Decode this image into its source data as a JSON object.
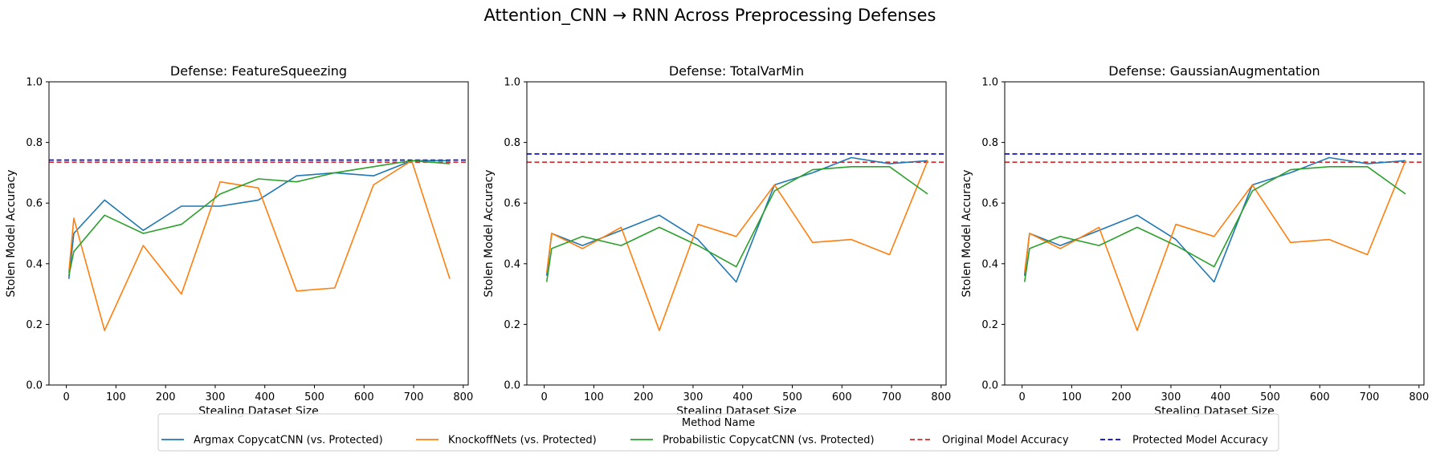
{
  "figure": {
    "title": "Attention_CNN → RNN Across Preprocessing Defenses"
  },
  "legend": {
    "title": "Method Name",
    "items": [
      {
        "label": "Argmax CopycatCNN (vs. Protected)",
        "color": "#1f77b4",
        "style": "solid"
      },
      {
        "label": "KnockoffNets (vs. Protected)",
        "color": "#ff7f0e",
        "style": "solid"
      },
      {
        "label": "Probabilistic CopycatCNN (vs. Protected)",
        "color": "#2ca02c",
        "style": "solid"
      },
      {
        "label": "Original Model Accuracy",
        "color": "#d62728",
        "style": "dashed"
      },
      {
        "label": "Protected Model Accuracy",
        "color": "#0000cc",
        "style": "dashed"
      }
    ]
  },
  "chart_data": [
    {
      "type": "line",
      "title": "Defense: FeatureSqueezing",
      "xlabel": "Stealing Dataset Size",
      "ylabel": "Stolen Model Accuracy",
      "xlim": [
        -35,
        810
      ],
      "ylim": [
        0,
        1
      ],
      "xticks": [
        0,
        100,
        200,
        300,
        400,
        500,
        600,
        700,
        800
      ],
      "yticks": [
        0.0,
        0.2,
        0.4,
        0.6,
        0.8,
        1.0
      ],
      "x": [
        5,
        15,
        77,
        155,
        232,
        310,
        387,
        464,
        541,
        619,
        696,
        773
      ],
      "series": [
        {
          "name": "Argmax CopycatCNN (vs. Protected)",
          "values": [
            0.35,
            0.5,
            0.61,
            0.51,
            0.59,
            0.59,
            0.61,
            0.69,
            0.7,
            0.69,
            0.74,
            0.74
          ]
        },
        {
          "name": "KnockoffNets (vs. Protected)",
          "values": [
            0.37,
            0.55,
            0.18,
            0.46,
            0.3,
            0.67,
            0.65,
            0.31,
            0.32,
            0.66,
            0.74,
            0.35
          ]
        },
        {
          "name": "Probabilistic CopycatCNN (vs. Protected)",
          "values": [
            0.36,
            0.44,
            0.56,
            0.5,
            0.53,
            0.63,
            0.68,
            0.67,
            0.7,
            0.72,
            0.74,
            0.73
          ]
        }
      ],
      "hlines": [
        {
          "name": "Original Model Accuracy",
          "y": 0.735
        },
        {
          "name": "Protected Model Accuracy",
          "y": 0.742
        }
      ]
    },
    {
      "type": "line",
      "title": "Defense: TotalVarMin",
      "xlabel": "Stealing Dataset Size",
      "ylabel": "Stolen Model Accuracy",
      "xlim": [
        -35,
        810
      ],
      "ylim": [
        0,
        1
      ],
      "xticks": [
        0,
        100,
        200,
        300,
        400,
        500,
        600,
        700,
        800
      ],
      "yticks": [
        0.0,
        0.2,
        0.4,
        0.6,
        0.8,
        1.0
      ],
      "x": [
        5,
        15,
        77,
        155,
        232,
        310,
        387,
        464,
        541,
        619,
        696,
        773
      ],
      "series": [
        {
          "name": "Argmax CopycatCNN (vs. Protected)",
          "values": [
            0.36,
            0.5,
            0.46,
            0.51,
            0.56,
            0.48,
            0.34,
            0.66,
            0.7,
            0.75,
            0.73,
            0.74
          ]
        },
        {
          "name": "KnockoffNets (vs. Protected)",
          "values": [
            0.37,
            0.5,
            0.45,
            0.52,
            0.18,
            0.53,
            0.49,
            0.66,
            0.47,
            0.48,
            0.43,
            0.74
          ]
        },
        {
          "name": "Probabilistic CopycatCNN (vs. Protected)",
          "values": [
            0.34,
            0.45,
            0.49,
            0.46,
            0.52,
            0.46,
            0.39,
            0.64,
            0.71,
            0.72,
            0.72,
            0.63
          ]
        }
      ],
      "hlines": [
        {
          "name": "Original Model Accuracy",
          "y": 0.735
        },
        {
          "name": "Protected Model Accuracy",
          "y": 0.762
        }
      ]
    },
    {
      "type": "line",
      "title": "Defense: GaussianAugmentation",
      "xlabel": "Stealing Dataset Size",
      "ylabel": "Stolen Model Accuracy",
      "xlim": [
        -35,
        810
      ],
      "ylim": [
        0,
        1
      ],
      "xticks": [
        0,
        100,
        200,
        300,
        400,
        500,
        600,
        700,
        800
      ],
      "yticks": [
        0.0,
        0.2,
        0.4,
        0.6,
        0.8,
        1.0
      ],
      "x": [
        5,
        15,
        77,
        155,
        232,
        310,
        387,
        464,
        541,
        619,
        696,
        773
      ],
      "series": [
        {
          "name": "Argmax CopycatCNN (vs. Protected)",
          "values": [
            0.36,
            0.5,
            0.46,
            0.51,
            0.56,
            0.48,
            0.34,
            0.66,
            0.7,
            0.75,
            0.73,
            0.74
          ]
        },
        {
          "name": "KnockoffNets (vs. Protected)",
          "values": [
            0.37,
            0.5,
            0.45,
            0.52,
            0.18,
            0.53,
            0.49,
            0.66,
            0.47,
            0.48,
            0.43,
            0.74
          ]
        },
        {
          "name": "Probabilistic CopycatCNN (vs. Protected)",
          "values": [
            0.34,
            0.45,
            0.49,
            0.46,
            0.52,
            0.46,
            0.39,
            0.64,
            0.71,
            0.72,
            0.72,
            0.63
          ]
        }
      ],
      "hlines": [
        {
          "name": "Original Model Accuracy",
          "y": 0.735
        },
        {
          "name": "Protected Model Accuracy",
          "y": 0.762
        }
      ]
    }
  ]
}
